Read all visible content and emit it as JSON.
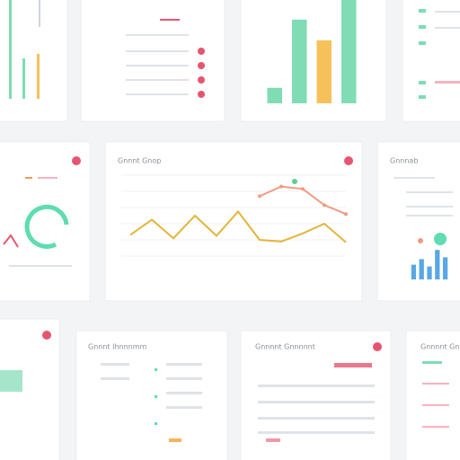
{
  "cards": [
    {
      "title": "Gnnnt Gnop"
    },
    {
      "title": "Gnnnab"
    },
    {
      "title": "Gnnnt Ihnnnmm"
    },
    {
      "title": "Gnnnnt Gnnnnnt"
    },
    {
      "title": "Gnnnnt Gnny"
    }
  ],
  "chart_data": [
    {
      "type": "bar",
      "categories": [
        null,
        null,
        null,
        null
      ],
      "values": [
        15,
        81,
        61,
        100
      ],
      "colors": [
        "#7fdcb4",
        "#7fdcb4",
        "#f7c15a",
        "#7fdcb4"
      ],
      "ylim": [
        0,
        100
      ]
    },
    {
      "type": "line",
      "x": [
        0,
        1,
        2,
        3,
        4,
        5,
        6,
        7,
        8,
        9,
        10
      ],
      "xlim": [
        0,
        10
      ],
      "ylim": [
        0,
        100
      ],
      "yticks": [
        0,
        20,
        40,
        60,
        80,
        100
      ],
      "grid": true,
      "series": [
        {
          "color": "#e2b53a",
          "values": [
            26,
            45,
            22,
            50,
            25,
            55,
            20,
            18,
            28,
            40,
            17
          ]
        },
        {
          "color": "#f29a80",
          "values": [
            null,
            null,
            null,
            null,
            null,
            null,
            74,
            86,
            83,
            63,
            52
          ]
        }
      ]
    },
    {
      "type": "bar",
      "categories": [
        null,
        null,
        null,
        null,
        null
      ],
      "values": [
        40,
        55,
        35,
        80,
        60
      ],
      "colors": [
        "#5aa7e6",
        "#5aa7e6",
        "#5aa7e6",
        "#5aa7e6",
        "#5aa7e6"
      ],
      "ylim": [
        0,
        100
      ]
    }
  ]
}
